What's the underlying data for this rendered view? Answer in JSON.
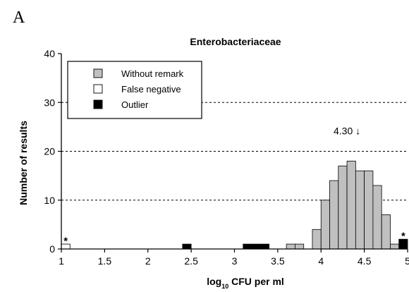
{
  "panel_letter": "A",
  "chart_data": {
    "type": "bar",
    "title": "Enterobacteriaceae",
    "xlabel_main": "log",
    "xlabel_sub": "10",
    "xlabel_rest": " CFU per ml",
    "ylabel": "Number of results",
    "xlim": [
      1,
      5
    ],
    "ylim": [
      0,
      40
    ],
    "xticks": [
      "1",
      "1.5",
      "2",
      "2.5",
      "3",
      "3.5",
      "4",
      "4.5",
      "5"
    ],
    "yticks": [
      "0",
      "10",
      "20",
      "30",
      "40"
    ],
    "grid": "horizontal dashed at 10, 20, 30",
    "bin_width": 0.1,
    "series": [
      {
        "name": "Without remark",
        "color": "#c0c0c0",
        "bins": [
          {
            "x": 3.65,
            "y": 1
          },
          {
            "x": 3.75,
            "y": 1
          },
          {
            "x": 3.95,
            "y": 4
          },
          {
            "x": 4.05,
            "y": 10
          },
          {
            "x": 4.15,
            "y": 14
          },
          {
            "x": 4.25,
            "y": 17
          },
          {
            "x": 4.35,
            "y": 18
          },
          {
            "x": 4.45,
            "y": 16
          },
          {
            "x": 4.55,
            "y": 16
          },
          {
            "x": 4.65,
            "y": 13
          },
          {
            "x": 4.75,
            "y": 7
          },
          {
            "x": 4.85,
            "y": 1
          }
        ]
      },
      {
        "name": "False negative",
        "color": "#ffffff",
        "bins": [
          {
            "x": 1.05,
            "y": 1
          }
        ]
      },
      {
        "name": "Outlier",
        "color": "#000000",
        "bins": [
          {
            "x": 2.45,
            "y": 1
          },
          {
            "x": 3.15,
            "y": 1
          },
          {
            "x": 3.25,
            "y": 1
          },
          {
            "x": 3.35,
            "y": 1
          },
          {
            "x": 4.95,
            "y": 2
          }
        ]
      }
    ],
    "annotations": [
      {
        "text": "4.30 ↓",
        "x": 4.3,
        "y": 23.5
      },
      {
        "text": "*",
        "x": 1.05,
        "y": 1.8
      },
      {
        "text": "*",
        "x": 4.95,
        "y": 2.8
      }
    ],
    "legend_position": "top-left"
  }
}
